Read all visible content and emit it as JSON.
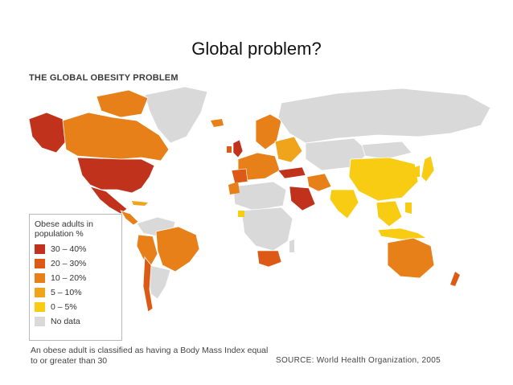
{
  "slide": {
    "title": "Global problem?"
  },
  "map": {
    "heading": "THE GLOBAL OBESITY PROBLEM",
    "legend": {
      "title": "Obese adults in\npopulation %",
      "items": [
        {
          "label": "30 – 40%",
          "color": "#c0321b"
        },
        {
          "label": "20 – 30%",
          "color": "#dd5a16"
        },
        {
          "label": "10 – 20%",
          "color": "#e8801a"
        },
        {
          "label": "5 – 10%",
          "color": "#f0a41c"
        },
        {
          "label": "0 – 5%",
          "color": "#f7cc12"
        },
        {
          "label": "No data",
          "color": "#d9d9d9"
        }
      ]
    },
    "footnote": "An obese adult is classified as having a Body Mass Index equal to or greater than 30",
    "source": "SOURCE: World Health Organization, 2005"
  }
}
